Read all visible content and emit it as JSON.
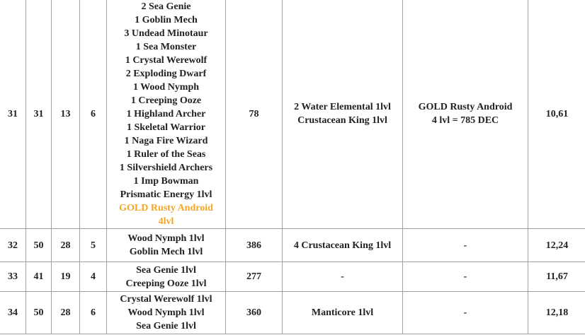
{
  "table": {
    "highlight_color": "#f5a623",
    "rows": [
      {
        "cells": [
          {
            "lines": [
              "31"
            ]
          },
          {
            "lines": [
              "31"
            ]
          },
          {
            "lines": [
              "13"
            ]
          },
          {
            "lines": [
              "6"
            ]
          },
          {
            "lines": [
              "2 Sea Genie",
              "1 Goblin Mech",
              "3 Undead Minotaur",
              "1 Sea Monster",
              "1 Crystal Werewolf",
              "2 Exploding Dwarf",
              "1 Wood Nymph",
              "1 Creeping Ooze",
              "1 Highland Archer",
              "1 Skeletal Warrior",
              "1 Naga Fire Wizard",
              "1 Ruler of the Seas",
              "1 Silvershield Archers",
              "1 Imp Bowman",
              "Prismatic Energy 1lvl"
            ],
            "highlighted_lines": [
              "GOLD Rusty Android",
              "4lvl"
            ]
          },
          {
            "lines": [
              "78"
            ]
          },
          {
            "lines": [
              "2 Water Elemental 1lvl",
              "Crustacean King 1lvl"
            ]
          },
          {
            "lines": [
              "GOLD Rusty Android",
              "4 lvl = 785 DEC"
            ]
          },
          {
            "lines": [
              "10,61"
            ]
          }
        ]
      },
      {
        "cells": [
          {
            "lines": [
              "32"
            ]
          },
          {
            "lines": [
              "50"
            ]
          },
          {
            "lines": [
              "28"
            ]
          },
          {
            "lines": [
              "5"
            ]
          },
          {
            "lines": [
              "Wood Nymph 1lvl",
              "Goblin Mech 1lvl"
            ]
          },
          {
            "lines": [
              "386"
            ]
          },
          {
            "lines": [
              "4 Crustacean King 1lvl"
            ]
          },
          {
            "lines": [
              "-"
            ]
          },
          {
            "lines": [
              "12,24"
            ]
          }
        ]
      },
      {
        "cells": [
          {
            "lines": [
              "33"
            ]
          },
          {
            "lines": [
              "41"
            ]
          },
          {
            "lines": [
              "19"
            ]
          },
          {
            "lines": [
              "4"
            ]
          },
          {
            "lines": [
              "Sea Genie 1lvl",
              "Creeping Ooze 1lvl"
            ]
          },
          {
            "lines": [
              "277"
            ]
          },
          {
            "lines": [
              "-"
            ]
          },
          {
            "lines": [
              "-"
            ]
          },
          {
            "lines": [
              "11,67"
            ]
          }
        ]
      },
      {
        "cells": [
          {
            "lines": [
              "34"
            ]
          },
          {
            "lines": [
              "50"
            ]
          },
          {
            "lines": [
              "28"
            ]
          },
          {
            "lines": [
              "6"
            ]
          },
          {
            "lines": [
              "Crystal Werewolf 1lvl",
              "Wood Nymph 1lvl",
              "Sea Genie 1lvl"
            ]
          },
          {
            "lines": [
              "360"
            ]
          },
          {
            "lines": [
              "Manticore 1lvl"
            ]
          },
          {
            "lines": [
              "-"
            ]
          },
          {
            "lines": [
              "12,18"
            ]
          }
        ]
      }
    ]
  }
}
